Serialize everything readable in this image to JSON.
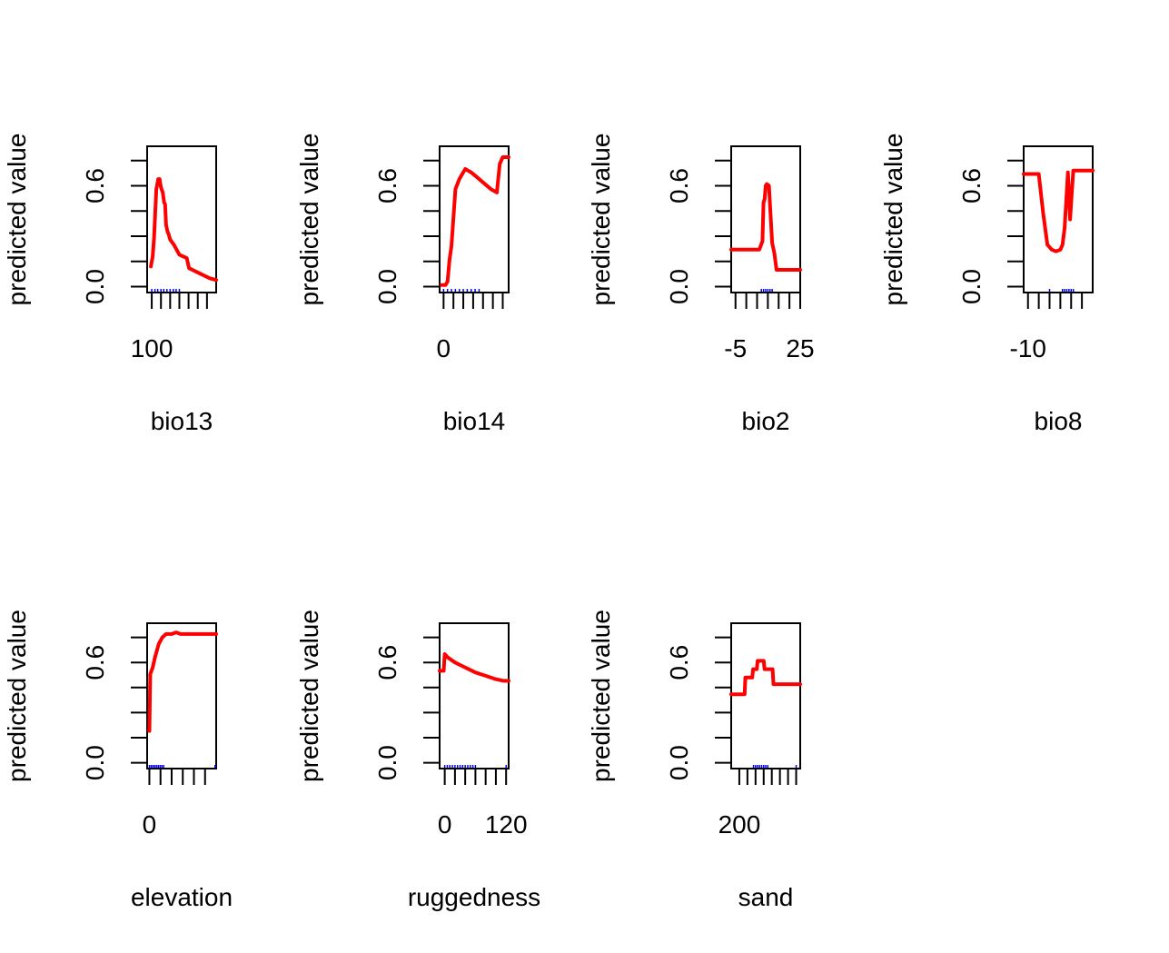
{
  "chart_data": [
    {
      "type": "line",
      "title": "",
      "xlabel": "bio13",
      "ylabel": "predicted value",
      "xlim": [
        90,
        240
      ],
      "ylim": [
        0,
        0.8
      ],
      "yticks": [
        0,
        0.15,
        0.3,
        0.45,
        0.6,
        0.75
      ],
      "ytick_labels": [
        "0.0",
        "",
        "",
        "",
        "0.6",
        ""
      ],
      "xticks": [
        100,
        120,
        140,
        160,
        180,
        200,
        220
      ],
      "xtick_labels": [
        "100",
        "",
        "",
        "",
        "",
        "",
        ""
      ],
      "series": [
        {
          "color": "#ff0000",
          "x": [
            98,
            102,
            105,
            110,
            114,
            117,
            120,
            124,
            127,
            129,
            131,
            134,
            137,
            140,
            148,
            154,
            160,
            176,
            181,
            203,
            226,
            240
          ],
          "y": [
            0.12,
            0.18,
            0.29,
            0.58,
            0.64,
            0.64,
            0.59,
            0.56,
            0.5,
            0.49,
            0.37,
            0.33,
            0.31,
            0.28,
            0.25,
            0.22,
            0.19,
            0.17,
            0.11,
            0.08,
            0.05,
            0.04
          ]
        }
      ],
      "rug": {
        "color": "#0000ff",
        "x": [
          100,
          107,
          113,
          120,
          126,
          133,
          140,
          147,
          153,
          160
        ]
      }
    },
    {
      "type": "line",
      "title": "",
      "xlabel": "bio14",
      "ylabel": "predicted value",
      "xlim": [
        -2,
        33
      ],
      "ylim": [
        0,
        0.8
      ],
      "yticks": [
        0,
        0.15,
        0.3,
        0.45,
        0.6,
        0.75
      ],
      "ytick_labels": [
        "0.0",
        "",
        "",
        "",
        "0.6",
        ""
      ],
      "xticks": [
        0,
        5,
        10,
        15,
        20,
        25,
        30
      ],
      "xtick_labels": [
        "0",
        "",
        "",
        "",
        "",
        "",
        ""
      ],
      "series": [
        {
          "color": "#ff0000",
          "x": [
            -1,
            1,
            2,
            3,
            4,
            6,
            8,
            11,
            14,
            17,
            20,
            24,
            27,
            28.5,
            30,
            33
          ],
          "y": [
            0.01,
            0.01,
            0.03,
            0.16,
            0.24,
            0.58,
            0.64,
            0.7,
            0.68,
            0.65,
            0.62,
            0.58,
            0.56,
            0.73,
            0.77,
            0.77
          ]
        }
      ],
      "rug": {
        "color": "#0000ff",
        "x": [
          0,
          2,
          4,
          6,
          8,
          10,
          12,
          14,
          16,
          18
        ]
      }
    },
    {
      "type": "line",
      "title": "",
      "xlabel": "bio2",
      "ylabel": "predicted value",
      "xlim": [
        -7,
        25
      ],
      "ylim": [
        0,
        0.8
      ],
      "yticks": [
        0,
        0.15,
        0.3,
        0.45,
        0.6,
        0.75
      ],
      "ytick_labels": [
        "0.0",
        "",
        "",
        "",
        "0.6",
        ""
      ],
      "xticks": [
        -5,
        0,
        5,
        10,
        15,
        20,
        25
      ],
      "xtick_labels": [
        "-5",
        "",
        "",
        "",
        "",
        "",
        "25"
      ],
      "series": [
        {
          "color": "#ff0000",
          "x": [
            -7,
            6,
            7.5,
            8,
            8.5,
            9,
            9.5,
            10.5,
            11,
            12,
            13,
            14,
            15,
            25
          ],
          "y": [
            0.22,
            0.22,
            0.27,
            0.5,
            0.52,
            0.6,
            0.61,
            0.6,
            0.48,
            0.26,
            0.2,
            0.1,
            0.1,
            0.1
          ]
        }
      ],
      "rug": {
        "color": "#0000ff",
        "x": [
          7,
          8,
          9,
          10,
          11,
          12
        ]
      }
    },
    {
      "type": "line",
      "title": "",
      "xlabel": "bio8",
      "ylabel": "predicted value",
      "xlim": [
        -12,
        20
      ],
      "ylim": [
        0,
        0.8
      ],
      "yticks": [
        0,
        0.15,
        0.3,
        0.45,
        0.6,
        0.75
      ],
      "ytick_labels": [
        "0.0",
        "",
        "",
        "",
        "0.6",
        ""
      ],
      "xticks": [
        -10,
        -5,
        0,
        5,
        10,
        15
      ],
      "xtick_labels": [
        "-10",
        "",
        "",
        "",
        "",
        ""
      ],
      "series": [
        {
          "color": "#ff0000",
          "x": [
            -12,
            -5,
            -3,
            -1,
            1,
            3,
            5,
            6,
            7,
            8.5,
            9.5,
            11,
            12,
            20
          ],
          "y": [
            0.67,
            0.67,
            0.44,
            0.25,
            0.22,
            0.21,
            0.22,
            0.25,
            0.35,
            0.68,
            0.4,
            0.69,
            0.69,
            0.69
          ]
        }
      ],
      "rug": {
        "color": "#0000ff",
        "x": [
          0,
          6,
          7,
          8,
          9,
          10,
          11
        ]
      }
    },
    {
      "type": "line",
      "title": "",
      "xlabel": "elevation",
      "ylabel": "predicted value",
      "xlim": [
        -100,
        3000
      ],
      "ylim": [
        0,
        0.8
      ],
      "yticks": [
        0,
        0.15,
        0.3,
        0.45,
        0.6,
        0.75
      ],
      "ytick_labels": [
        "0.0",
        "",
        "",
        "",
        "0.6",
        ""
      ],
      "xticks": [
        0,
        500,
        1000,
        1500,
        2000,
        2500
      ],
      "xtick_labels": [
        "0",
        "",
        "",
        "",
        "",
        ""
      ],
      "series": [
        {
          "color": "#ff0000",
          "x": [
            0,
            40,
            150,
            250,
            420,
            580,
            750,
            1000,
            1200,
            1400,
            2000,
            3000
          ],
          "y": [
            0.19,
            0.53,
            0.57,
            0.63,
            0.71,
            0.75,
            0.77,
            0.77,
            0.78,
            0.77,
            0.77,
            0.77
          ]
        }
      ],
      "rug": {
        "color": "#0000ff",
        "x": [
          0,
          80,
          160,
          240,
          320,
          400,
          480,
          560,
          640,
          2950
        ]
      }
    },
    {
      "type": "line",
      "title": "",
      "xlabel": "ruggedness",
      "ylabel": "predicted value",
      "xlim": [
        -10,
        125
      ],
      "ylim": [
        0,
        0.8
      ],
      "yticks": [
        0,
        0.15,
        0.3,
        0.45,
        0.6,
        0.75
      ],
      "ytick_labels": [
        "0.0",
        "",
        "",
        "",
        "0.6",
        ""
      ],
      "xticks": [
        0,
        20,
        40,
        60,
        80,
        100,
        120
      ],
      "xtick_labels": [
        "0",
        "",
        "",
        "",
        "",
        "",
        "120"
      ],
      "series": [
        {
          "color": "#ff0000",
          "x": [
            -10,
            -2,
            0,
            6,
            20,
            40,
            60,
            80,
            100,
            115,
            125
          ],
          "y": [
            0.55,
            0.55,
            0.65,
            0.63,
            0.6,
            0.57,
            0.54,
            0.52,
            0.5,
            0.49,
            0.49
          ]
        }
      ],
      "rug": {
        "color": "#0000ff",
        "x": [
          0,
          5,
          10,
          15,
          20,
          25,
          30,
          35,
          40,
          45,
          50,
          55,
          60,
          120
        ]
      }
    },
    {
      "type": "line",
      "title": "",
      "xlabel": "sand",
      "ylabel": "predicted value",
      "xlim": [
        180,
        350
      ],
      "ylim": [
        0,
        0.8
      ],
      "yticks": [
        0,
        0.15,
        0.3,
        0.45,
        0.6,
        0.75
      ],
      "ytick_labels": [
        "0.0",
        "",
        "",
        "",
        "0.6",
        ""
      ],
      "xticks": [
        200,
        220,
        240,
        260,
        280,
        300,
        320,
        340
      ],
      "xtick_labels": [
        "200",
        "",
        "",
        "",
        "",
        "",
        "",
        ""
      ],
      "series": [
        {
          "color": "#ff0000",
          "x": [
            180,
            213,
            215,
            232,
            234,
            243,
            245,
            260,
            262,
            282,
            284,
            350
          ],
          "y": [
            0.41,
            0.41,
            0.51,
            0.51,
            0.56,
            0.56,
            0.61,
            0.61,
            0.56,
            0.56,
            0.47,
            0.47
          ]
        }
      ],
      "rug": {
        "color": "#0000ff",
        "x": [
          235,
          240,
          245,
          250,
          255,
          260,
          265,
          270,
          340
        ]
      }
    }
  ]
}
